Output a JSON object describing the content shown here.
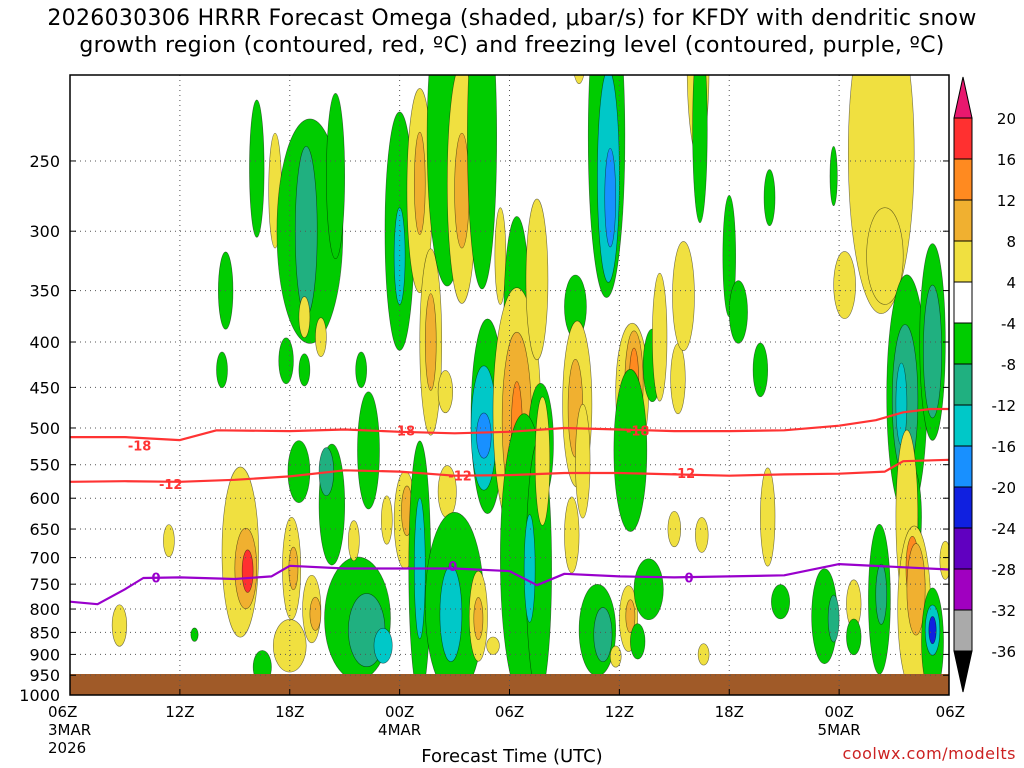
{
  "chart_data": {
    "type": "heatmap",
    "title_line1": "2026030306 HRRR Forecast Omega (shaded, μbar/s) for KFDY with dendritic snow",
    "title_line2": "growth region (contoured, red, ºC) and freezing level (contoured, purple, ºC)",
    "xlabel": "Forecast Time (UTC)",
    "ylabel": "",
    "credit": "coolwx.com/modelts",
    "x_hours": [
      0,
      48
    ],
    "y_pressure": [
      200,
      1000
    ],
    "x_ticks": [
      {
        "h": 0,
        "label": "06Z",
        "sub1": "3MAR",
        "sub2": "2026"
      },
      {
        "h": 6,
        "label": "12Z"
      },
      {
        "h": 12,
        "label": "18Z"
      },
      {
        "h": 18,
        "label": "00Z",
        "sub1": "4MAR"
      },
      {
        "h": 24,
        "label": "06Z"
      },
      {
        "h": 30,
        "label": "12Z"
      },
      {
        "h": 36,
        "label": "18Z"
      },
      {
        "h": 42,
        "label": "00Z",
        "sub1": "5MAR"
      },
      {
        "h": 48,
        "label": "06Z"
      }
    ],
    "y_ticks": [
      250,
      300,
      350,
      400,
      450,
      500,
      550,
      600,
      650,
      700,
      750,
      800,
      850,
      900,
      950,
      1000
    ],
    "y_tick_labels": [
      "250",
      "300",
      "350",
      "400",
      "450",
      "500",
      "550",
      "600",
      "650",
      "700",
      "750",
      "800",
      "850",
      "900",
      "950",
      "1000"
    ],
    "colorbar": {
      "levels": [
        20,
        16,
        12,
        8,
        4,
        -4,
        -8,
        -12,
        -16,
        -20,
        -24,
        -28,
        -32,
        -36
      ],
      "labels": [
        "20",
        "16",
        "12",
        "8",
        "4",
        "-4",
        "-8",
        "-12",
        "-16",
        "-20",
        "-24",
        "-28",
        "-32",
        "-36"
      ],
      "colors": [
        "#e8186e",
        "#ff3030",
        "#ff8a20",
        "#f0b030",
        "#f0e040",
        "#ffffff",
        "#00cc00",
        "#20b080",
        "#00c8c8",
        "#1890ff",
        "#1020e0",
        "#6000c0",
        "#a000c0",
        "#aaaaaa",
        "#000000"
      ]
    },
    "contours": [
      {
        "name": "-18C",
        "label": "-18",
        "color": "#ff3333",
        "x": [
          0,
          3,
          6,
          8,
          12,
          15,
          18,
          21,
          24,
          27,
          30,
          33,
          36,
          39,
          42,
          44,
          45.5,
          47,
          48
        ],
        "y": [
          512,
          512,
          516,
          503,
          504,
          502,
          505,
          507,
          505,
          500,
          502,
          504,
          504,
          503,
          497,
          490,
          480,
          476,
          476
        ]
      },
      {
        "name": "-12C",
        "label": "-12",
        "color": "#ff3333",
        "x": [
          0,
          3,
          6,
          9,
          12,
          15,
          18,
          21,
          24,
          27,
          30,
          33,
          36,
          39,
          42,
          44.5,
          45.5,
          48
        ],
        "y": [
          575,
          574,
          575,
          572,
          567,
          558,
          560,
          566,
          565,
          562,
          562,
          564,
          566,
          564,
          563,
          560,
          545,
          543
        ]
      },
      {
        "name": "0C",
        "label": "0",
        "color": "#9900cc",
        "x": [
          0,
          1.5,
          3,
          4,
          6,
          9,
          11,
          12,
          15,
          18,
          21,
          24,
          25.5,
          27,
          30,
          33,
          36,
          39,
          42,
          45,
          48
        ],
        "y": [
          785,
          790,
          760,
          738,
          737,
          740,
          735,
          715,
          720,
          720,
          720,
          725,
          752,
          730,
          735,
          737,
          735,
          733,
          712,
          717,
          722
        ]
      }
    ],
    "contour_labels": [
      {
        "text": "-18",
        "h": 3.8,
        "p": 523
      },
      {
        "text": "-18",
        "h": 18.2,
        "p": 503
      },
      {
        "text": "-18",
        "h": 31.0,
        "p": 503
      },
      {
        "text": "-12",
        "h": 5.5,
        "p": 578
      },
      {
        "text": "-12",
        "h": 21.3,
        "p": 566
      },
      {
        "text": "-12",
        "h": 33.5,
        "p": 562
      },
      {
        "text": "0",
        "h": 4.7,
        "p": 737
      },
      {
        "text": "0",
        "h": 20.9,
        "p": 715
      },
      {
        "text": "0",
        "h": 33.8,
        "p": 737
      }
    ],
    "omega_regions": [
      {
        "h": 8.5,
        "p": 350,
        "dh": 0.4,
        "dp": 35,
        "v": -6
      },
      {
        "h": 8.3,
        "p": 430,
        "dh": 0.3,
        "dp": 20,
        "v": -6
      },
      {
        "h": 10.2,
        "p": 255,
        "dh": 0.4,
        "dp": 45,
        "v": -6
      },
      {
        "h": 11.2,
        "p": 270,
        "dh": 0.35,
        "dp": 40,
        "v": 6
      },
      {
        "h": 11.8,
        "p": 420,
        "dh": 0.4,
        "dp": 25,
        "v": -6
      },
      {
        "h": 13.1,
        "p": 300,
        "dh": 1.8,
        "dp": 85,
        "v": -6
      },
      {
        "h": 12.9,
        "p": 300,
        "dh": 0.6,
        "dp": 65,
        "v": -10
      },
      {
        "h": 14.5,
        "p": 260,
        "dh": 0.5,
        "dp": 55,
        "v": -6
      },
      {
        "h": 12.8,
        "p": 375,
        "dh": 0.3,
        "dp": 20,
        "v": 6
      },
      {
        "h": 13.7,
        "p": 395,
        "dh": 0.3,
        "dp": 20,
        "v": 6
      },
      {
        "h": 12.8,
        "p": 430,
        "dh": 0.3,
        "dp": 18,
        "v": -6
      },
      {
        "h": 15.9,
        "p": 430,
        "dh": 0.3,
        "dp": 20,
        "v": -6
      },
      {
        "h": 16.3,
        "p": 530,
        "dh": 0.6,
        "dp": 80,
        "v": -6
      },
      {
        "h": 18.0,
        "p": 300,
        "dh": 0.8,
        "dp": 90,
        "v": -6
      },
      {
        "h": 18.0,
        "p": 320,
        "dh": 0.3,
        "dp": 40,
        "v": -12
      },
      {
        "h": 19.1,
        "p": 270,
        "dh": 0.7,
        "dp": 70,
        "v": 6
      },
      {
        "h": 19.1,
        "p": 265,
        "dh": 0.3,
        "dp": 35,
        "v": 10
      },
      {
        "h": 19.7,
        "p": 400,
        "dh": 0.6,
        "dp": 95,
        "v": 6
      },
      {
        "h": 19.7,
        "p": 400,
        "dh": 0.3,
        "dp": 50,
        "v": 10
      },
      {
        "h": 20.6,
        "p": 235,
        "dh": 1.1,
        "dp": 90,
        "v": -6
      },
      {
        "h": 20.5,
        "p": 455,
        "dh": 0.4,
        "dp": 25,
        "v": 6
      },
      {
        "h": 21.4,
        "p": 265,
        "dh": 0.8,
        "dp": 80,
        "v": 6
      },
      {
        "h": 21.4,
        "p": 270,
        "dh": 0.4,
        "dp": 40,
        "v": 10
      },
      {
        "h": 22.5,
        "p": 235,
        "dh": 0.8,
        "dp": 95,
        "v": -6
      },
      {
        "h": 22.8,
        "p": 485,
        "dh": 0.9,
        "dp": 120,
        "v": -6
      },
      {
        "h": 22.6,
        "p": 500,
        "dh": 0.7,
        "dp": 80,
        "v": -12
      },
      {
        "h": 22.6,
        "p": 510,
        "dh": 0.4,
        "dp": 30,
        "v": -16
      },
      {
        "h": 23.5,
        "p": 320,
        "dh": 0.3,
        "dp": 40,
        "v": 6
      },
      {
        "h": 24.4,
        "p": 370,
        "dh": 0.7,
        "dp": 90,
        "v": -6
      },
      {
        "h": 24.4,
        "p": 480,
        "dh": 1.3,
        "dp": 150,
        "v": 6
      },
      {
        "h": 24.4,
        "p": 490,
        "dh": 0.8,
        "dp": 110,
        "v": 10
      },
      {
        "h": 24.4,
        "p": 500,
        "dh": 0.3,
        "dp": 60,
        "v": 14
      },
      {
        "h": 25.5,
        "p": 340,
        "dh": 0.6,
        "dp": 70,
        "v": 6
      },
      {
        "h": 25.7,
        "p": 520,
        "dh": 0.7,
        "dp": 80,
        "v": -6
      },
      {
        "h": 27.6,
        "p": 365,
        "dh": 0.6,
        "dp": 30,
        "v": -6
      },
      {
        "h": 27.7,
        "p": 470,
        "dh": 0.8,
        "dp": 100,
        "v": 6
      },
      {
        "h": 27.6,
        "p": 475,
        "dh": 0.4,
        "dp": 60,
        "v": 10
      },
      {
        "h": 27.8,
        "p": 175,
        "dh": 0.5,
        "dp": 30,
        "v": 6
      },
      {
        "h": 29.3,
        "p": 235,
        "dh": 1.0,
        "dp": 110,
        "v": -6
      },
      {
        "h": 29.4,
        "p": 260,
        "dh": 0.6,
        "dp": 70,
        "v": -12
      },
      {
        "h": 29.5,
        "p": 275,
        "dh": 0.3,
        "dp": 35,
        "v": -16
      },
      {
        "h": 30.7,
        "p": 455,
        "dh": 0.9,
        "dp": 80,
        "v": 6
      },
      {
        "h": 30.8,
        "p": 445,
        "dh": 0.5,
        "dp": 60,
        "v": 10
      },
      {
        "h": 30.8,
        "p": 440,
        "dh": 0.25,
        "dp": 35,
        "v": 14
      },
      {
        "h": 30.6,
        "p": 530,
        "dh": 0.9,
        "dp": 110,
        "v": -6
      },
      {
        "h": 31.8,
        "p": 425,
        "dh": 0.5,
        "dp": 40,
        "v": -6
      },
      {
        "h": 32.2,
        "p": 395,
        "dh": 0.4,
        "dp": 65,
        "v": 6
      },
      {
        "h": 33.2,
        "p": 440,
        "dh": 0.4,
        "dp": 40,
        "v": 6
      },
      {
        "h": 33.5,
        "p": 355,
        "dh": 0.6,
        "dp": 50,
        "v": 6
      },
      {
        "h": 34.3,
        "p": 195,
        "dh": 0.6,
        "dp": 45,
        "v": 6
      },
      {
        "h": 34.4,
        "p": 230,
        "dh": 0.4,
        "dp": 55,
        "v": -6
      },
      {
        "h": 36.0,
        "p": 320,
        "dh": 0.35,
        "dp": 50,
        "v": -6
      },
      {
        "h": 36.5,
        "p": 370,
        "dh": 0.5,
        "dp": 30,
        "v": -6
      },
      {
        "h": 37.7,
        "p": 430,
        "dh": 0.4,
        "dp": 30,
        "v": -6
      },
      {
        "h": 38.2,
        "p": 275,
        "dh": 0.3,
        "dp": 20,
        "v": -6
      },
      {
        "h": 41.7,
        "p": 260,
        "dh": 0.2,
        "dp": 20,
        "v": -6
      },
      {
        "h": 42.3,
        "p": 345,
        "dh": 0.6,
        "dp": 30,
        "v": 6
      },
      {
        "h": 43.5,
        "p": 215,
        "dh": 0.3,
        "dp": 25,
        "v": 6
      },
      {
        "h": 44.3,
        "p": 245,
        "dh": 1.8,
        "dp": 100,
        "v": 6
      },
      {
        "h": 44.5,
        "p": 320,
        "dh": 1.0,
        "dp": 40,
        "v": 6
      },
      {
        "h": 45.7,
        "p": 460,
        "dh": 1.1,
        "dp": 140,
        "v": -6
      },
      {
        "h": 45.6,
        "p": 465,
        "dh": 0.7,
        "dp": 90,
        "v": -10
      },
      {
        "h": 45.4,
        "p": 470,
        "dh": 0.3,
        "dp": 50,
        "v": -14
      },
      {
        "h": 47.1,
        "p": 400,
        "dh": 0.7,
        "dp": 100,
        "v": -6
      },
      {
        "h": 47.1,
        "p": 410,
        "dh": 0.5,
        "dp": 70,
        "v": -10
      },
      {
        "h": 46.0,
        "p": 630,
        "dh": 0.5,
        "dp": 80,
        "v": -6
      },
      {
        "h": 46.0,
        "p": 640,
        "dh": 0.3,
        "dp": 50,
        "v": -10
      },
      {
        "h": 2.7,
        "p": 835,
        "dh": 0.4,
        "dp": 45,
        "v": 6
      },
      {
        "h": 5.4,
        "p": 670,
        "dh": 0.3,
        "dp": 28,
        "v": 6
      },
      {
        "h": 6.8,
        "p": 855,
        "dh": 0.2,
        "dp": 15,
        "v": -6
      },
      {
        "h": 9.3,
        "p": 690,
        "dh": 1.0,
        "dp": 150,
        "v": 6
      },
      {
        "h": 9.6,
        "p": 720,
        "dh": 0.6,
        "dp": 75,
        "v": 10
      },
      {
        "h": 9.7,
        "p": 725,
        "dh": 0.3,
        "dp": 40,
        "v": 16
      },
      {
        "h": 10.5,
        "p": 930,
        "dh": 0.5,
        "dp": 40,
        "v": -6
      },
      {
        "h": 12.0,
        "p": 880,
        "dh": 0.9,
        "dp": 60,
        "v": 6
      },
      {
        "h": 12.1,
        "p": 720,
        "dh": 0.5,
        "dp": 95,
        "v": 6
      },
      {
        "h": 12.2,
        "p": 720,
        "dh": 0.25,
        "dp": 40,
        "v": 10
      },
      {
        "h": 12.5,
        "p": 560,
        "dh": 0.6,
        "dp": 45,
        "v": -6
      },
      {
        "h": 13.2,
        "p": 800,
        "dh": 0.5,
        "dp": 70,
        "v": 6
      },
      {
        "h": 13.4,
        "p": 810,
        "dh": 0.3,
        "dp": 35,
        "v": 10
      },
      {
        "h": 14.3,
        "p": 610,
        "dh": 0.7,
        "dp": 95,
        "v": -6
      },
      {
        "h": 14.0,
        "p": 560,
        "dh": 0.4,
        "dp": 35,
        "v": -10
      },
      {
        "h": 15.7,
        "p": 820,
        "dh": 1.8,
        "dp": 130,
        "v": -6
      },
      {
        "h": 16.2,
        "p": 845,
        "dh": 1.0,
        "dp": 80,
        "v": -10
      },
      {
        "h": 17.1,
        "p": 880,
        "dh": 0.5,
        "dp": 40,
        "v": -14
      },
      {
        "h": 15.5,
        "p": 670,
        "dh": 0.3,
        "dp": 35,
        "v": 6
      },
      {
        "h": 17.3,
        "p": 635,
        "dh": 0.3,
        "dp": 40,
        "v": 6
      },
      {
        "h": 18.3,
        "p": 635,
        "dh": 0.6,
        "dp": 80,
        "v": 6
      },
      {
        "h": 18.4,
        "p": 620,
        "dh": 0.3,
        "dp": 40,
        "v": 10
      },
      {
        "h": 19.1,
        "p": 720,
        "dh": 0.6,
        "dp": 230,
        "v": -6
      },
      {
        "h": 19.1,
        "p": 720,
        "dh": 0.3,
        "dp": 130,
        "v": -12
      },
      {
        "h": 20.6,
        "p": 590,
        "dh": 0.5,
        "dp": 40,
        "v": 6
      },
      {
        "h": 20.3,
        "p": 710,
        "dh": 0.3,
        "dp": 30,
        "v": 6
      },
      {
        "h": 21.0,
        "p": 790,
        "dh": 1.6,
        "dp": 185,
        "v": -6
      },
      {
        "h": 20.8,
        "p": 810,
        "dh": 0.6,
        "dp": 100,
        "v": -12
      },
      {
        "h": 22.3,
        "p": 815,
        "dh": 0.5,
        "dp": 95,
        "v": 6
      },
      {
        "h": 22.3,
        "p": 820,
        "dh": 0.25,
        "dp": 45,
        "v": 10
      },
      {
        "h": 24.5,
        "p": 610,
        "dh": 0.3,
        "dp": 45,
        "v": 6
      },
      {
        "h": 23.1,
        "p": 880,
        "dh": 0.35,
        "dp": 20,
        "v": 6
      },
      {
        "h": 24.8,
        "p": 700,
        "dh": 1.3,
        "dp": 250,
        "v": -6
      },
      {
        "h": 25.6,
        "p": 720,
        "dh": 0.7,
        "dp": 230,
        "v": -6
      },
      {
        "h": 25.1,
        "p": 720,
        "dh": 0.3,
        "dp": 100,
        "v": -12
      },
      {
        "h": 25.8,
        "p": 545,
        "dh": 0.4,
        "dp": 90,
        "v": 6
      },
      {
        "h": 27.4,
        "p": 660,
        "dh": 0.4,
        "dp": 65,
        "v": 6
      },
      {
        "h": 28.0,
        "p": 545,
        "dh": 0.4,
        "dp": 80,
        "v": 6
      },
      {
        "h": 28.8,
        "p": 845,
        "dh": 1.0,
        "dp": 100,
        "v": -6
      },
      {
        "h": 29.1,
        "p": 855,
        "dh": 0.5,
        "dp": 60,
        "v": -10
      },
      {
        "h": 30.5,
        "p": 820,
        "dh": 0.5,
        "dp": 70,
        "v": 6
      },
      {
        "h": 30.6,
        "p": 815,
        "dh": 0.25,
        "dp": 35,
        "v": 10
      },
      {
        "h": 29.8,
        "p": 905,
        "dh": 0.3,
        "dp": 25,
        "v": 6
      },
      {
        "h": 31.6,
        "p": 760,
        "dh": 0.8,
        "dp": 60,
        "v": -6
      },
      {
        "h": 31.0,
        "p": 870,
        "dh": 0.4,
        "dp": 40,
        "v": -6
      },
      {
        "h": 33.0,
        "p": 650,
        "dh": 0.35,
        "dp": 30,
        "v": 6
      },
      {
        "h": 34.5,
        "p": 660,
        "dh": 0.35,
        "dp": 30,
        "v": 6
      },
      {
        "h": 34.6,
        "p": 900,
        "dh": 0.3,
        "dp": 25,
        "v": 6
      },
      {
        "h": 38.1,
        "p": 630,
        "dh": 0.4,
        "dp": 80,
        "v": 6
      },
      {
        "h": 38.8,
        "p": 785,
        "dh": 0.5,
        "dp": 35,
        "v": -6
      },
      {
        "h": 41.2,
        "p": 815,
        "dh": 0.7,
        "dp": 100,
        "v": -6
      },
      {
        "h": 41.7,
        "p": 820,
        "dh": 0.3,
        "dp": 50,
        "v": -10
      },
      {
        "h": 42.8,
        "p": 790,
        "dh": 0.4,
        "dp": 50,
        "v": 6
      },
      {
        "h": 42.8,
        "p": 860,
        "dh": 0.4,
        "dp": 40,
        "v": -6
      },
      {
        "h": 44.2,
        "p": 780,
        "dh": 0.6,
        "dp": 150,
        "v": -6
      },
      {
        "h": 44.3,
        "p": 770,
        "dh": 0.3,
        "dp": 60,
        "v": -10
      },
      {
        "h": 45.7,
        "p": 630,
        "dh": 0.6,
        "dp": 140,
        "v": 6
      },
      {
        "h": 46.1,
        "p": 800,
        "dh": 0.9,
        "dp": 170,
        "v": 6
      },
      {
        "h": 46.0,
        "p": 720,
        "dh": 0.35,
        "dp": 60,
        "v": 14
      },
      {
        "h": 46.2,
        "p": 760,
        "dh": 0.5,
        "dp": 90,
        "v": 10
      },
      {
        "h": 47.1,
        "p": 870,
        "dh": 0.6,
        "dp": 120,
        "v": -6
      },
      {
        "h": 47.1,
        "p": 845,
        "dh": 0.4,
        "dp": 55,
        "v": -14
      },
      {
        "h": 47.1,
        "p": 845,
        "dh": 0.2,
        "dp": 30,
        "v": -22
      },
      {
        "h": 47.8,
        "p": 705,
        "dh": 0.3,
        "dp": 35,
        "v": 6
      }
    ]
  }
}
